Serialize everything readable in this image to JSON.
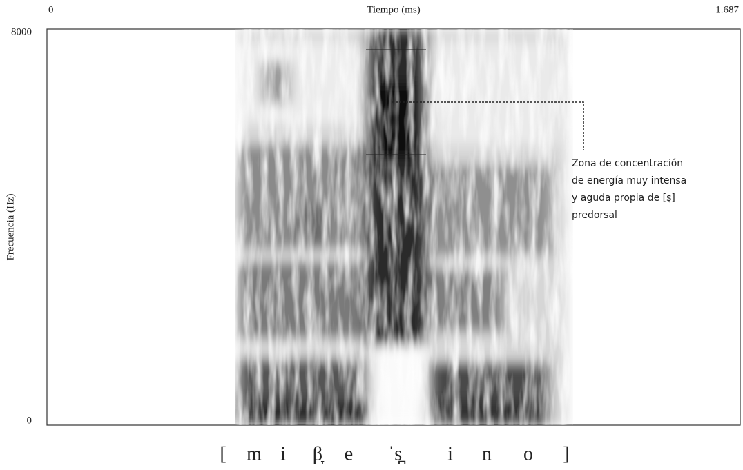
{
  "chart_data": {
    "type": "spectrogram",
    "x_label": "Tiempo (ms)",
    "y_label": "Frecuencia (Hz)",
    "xlim": [
      0,
      1.687
    ],
    "xticks": [
      0,
      1.687
    ],
    "ylim": [
      0,
      8000
    ],
    "yticks": [
      0,
      8000
    ],
    "annotation": [
      "Zona de concentración",
      "de energía muy intensa",
      "y aguda propia de [s̪]",
      "predorsal"
    ],
    "transcription": [
      "[",
      "m",
      "i",
      "β̞",
      "e",
      "ˈs̪",
      "i",
      "n",
      "o",
      "]"
    ]
  }
}
